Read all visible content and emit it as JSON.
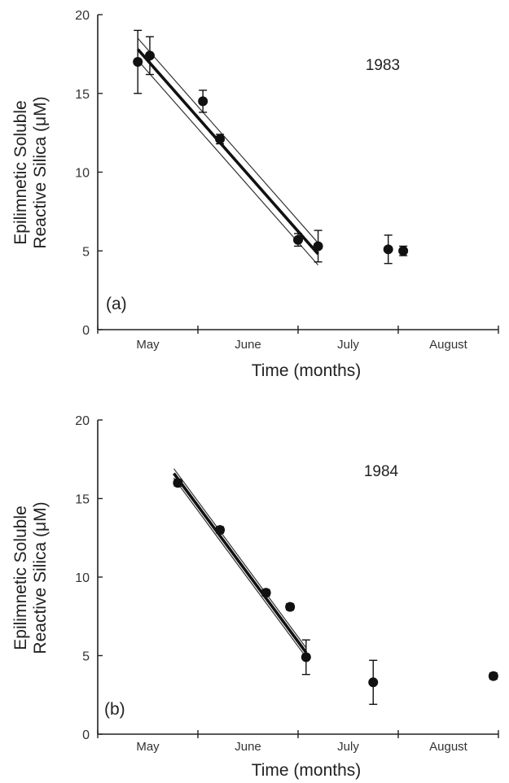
{
  "chart_data": [
    {
      "type": "scatter",
      "panel": "(a)",
      "annotation": "1983",
      "xlabel": "Time (months)",
      "ylabel_line1": "Epilimnetic Soluble",
      "ylabel_line2": "Reactive Silica (μM)",
      "ylim": [
        0,
        20
      ],
      "yticks": [
        0,
        5,
        10,
        15,
        20
      ],
      "ytick_labels": [
        "0",
        "5",
        "10",
        "15",
        "20"
      ],
      "xlim": [
        0,
        4
      ],
      "month_boundaries": [
        0,
        1,
        2,
        3,
        4
      ],
      "months": [
        {
          "label": "May",
          "pos": 0.5
        },
        {
          "label": "June",
          "pos": 1.5
        },
        {
          "label": "July",
          "pos": 2.5
        },
        {
          "label": "August",
          "pos": 3.5
        }
      ],
      "series": [
        {
          "marker": "circle",
          "points": [
            {
              "x": 0.4,
              "y": 17.0,
              "err": 2.0
            },
            {
              "x": 0.52,
              "y": 17.4,
              "err": 1.2
            },
            {
              "x": 1.05,
              "y": 14.5,
              "err": 0.7
            },
            {
              "x": 1.22,
              "y": 12.1,
              "err": 0.3
            },
            {
              "x": 2.0,
              "y": 5.7,
              "err": 0.4
            },
            {
              "x": 2.2,
              "y": 5.3,
              "err": 1.0
            },
            {
              "x": 2.9,
              "y": 5.1,
              "err": 0.9
            },
            {
              "x": 3.05,
              "y": 5.0,
              "err": 0.3
            }
          ]
        }
      ],
      "fit": {
        "x0": 0.4,
        "y0": 17.8,
        "x1": 2.2,
        "y1": 4.8,
        "band": 0.7
      }
    },
    {
      "type": "scatter",
      "panel": "(b)",
      "annotation": "1984",
      "xlabel": "Time (months)",
      "ylabel_line1": "Epilimnetic Soluble",
      "ylabel_line2": "Reactive Silica (μM)",
      "ylim": [
        0,
        20
      ],
      "yticks": [
        0,
        5,
        10,
        15,
        20
      ],
      "ytick_labels": [
        "0",
        "5",
        "10",
        "15",
        "20"
      ],
      "xlim": [
        0,
        4
      ],
      "month_boundaries": [
        0,
        1,
        2,
        3,
        4
      ],
      "months": [
        {
          "label": "May",
          "pos": 0.5
        },
        {
          "label": "June",
          "pos": 1.5
        },
        {
          "label": "July",
          "pos": 2.5
        },
        {
          "label": "August",
          "pos": 3.5
        }
      ],
      "series": [
        {
          "marker": "circle",
          "points": [
            {
              "x": 0.8,
              "y": 16.0,
              "err": 0.2
            },
            {
              "x": 1.22,
              "y": 13.0,
              "err": 0.2
            },
            {
              "x": 1.68,
              "y": 9.0,
              "err": 0.2
            },
            {
              "x": 1.92,
              "y": 8.1,
              "err": 0.2
            },
            {
              "x": 2.08,
              "y": 4.9,
              "err": 1.1
            },
            {
              "x": 2.75,
              "y": 3.3,
              "err": 1.4
            },
            {
              "x": 3.95,
              "y": 3.7,
              "err": 0.2
            }
          ]
        }
      ],
      "fit": {
        "x0": 0.76,
        "y0": 16.6,
        "x1": 2.08,
        "y1": 5.2,
        "band": 0.3
      }
    }
  ]
}
